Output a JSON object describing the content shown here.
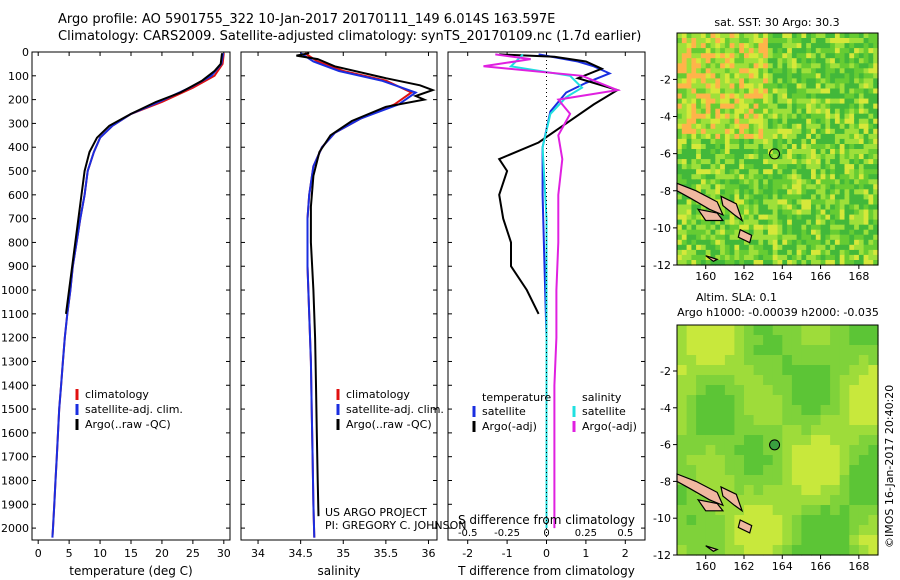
{
  "header": {
    "line1": "Argo profile: AO 5901755_322 10-Jan-2017 20170111_149 6.014S 163.597E",
    "line2": "Climatology: CARS2009. Satellite-adjusted climatology: synTS_20170109.nc (1.7d earlier)"
  },
  "credit": "©IMOS 16-Jan-2017 20:40:20",
  "colors": {
    "climatology": "#e01010",
    "satellite": "#1a2ee0",
    "argo": "#000000",
    "sal_satellite": "#20e0e0",
    "sal_argo": "#e020e0"
  },
  "chart_data": [
    {
      "type": "line",
      "panel": "temperature",
      "xlabel": "temperature (deg C)",
      "xlim": [
        -1,
        31
      ],
      "xticks": [
        0,
        5,
        10,
        15,
        20,
        25,
        30
      ],
      "ylim": [
        2050,
        0
      ],
      "yticks": [
        0,
        100,
        200,
        300,
        400,
        500,
        600,
        700,
        800,
        900,
        1000,
        1100,
        1200,
        1300,
        1400,
        1500,
        1600,
        1700,
        1800,
        1900,
        2000
      ],
      "legend": [
        "climatology",
        "satellite-adj. clim.",
        "Argo(..raw -QC)"
      ],
      "series": [
        {
          "name": "climatology",
          "color_key": "climatology",
          "points": [
            [
              30.0,
              5
            ],
            [
              29.8,
              50
            ],
            [
              28.5,
              100
            ],
            [
              25,
              150
            ],
            [
              20,
              210
            ],
            [
              15,
              260
            ],
            [
              12,
              310
            ],
            [
              10,
              360
            ],
            [
              9,
              420
            ],
            [
              8,
              500
            ],
            [
              7.5,
              600
            ],
            [
              6.8,
              700
            ],
            [
              6.2,
              800
            ],
            [
              5.6,
              900
            ],
            [
              5.2,
              1000
            ],
            [
              4.7,
              1100
            ],
            [
              4.3,
              1200
            ],
            [
              4.0,
              1300
            ],
            [
              3.7,
              1400
            ],
            [
              3.4,
              1500
            ],
            [
              3.2,
              1600
            ],
            [
              3.0,
              1700
            ],
            [
              2.8,
              1800
            ],
            [
              2.6,
              1900
            ],
            [
              2.4,
              2000
            ],
            [
              2.3,
              2040
            ]
          ]
        },
        {
          "name": "satellite-adj. clim.",
          "color_key": "satellite",
          "points": [
            [
              29.9,
              5
            ],
            [
              29.6,
              50
            ],
            [
              28.0,
              100
            ],
            [
              24.5,
              150
            ],
            [
              19.5,
              210
            ],
            [
              15,
              260
            ],
            [
              12,
              310
            ],
            [
              10,
              360
            ],
            [
              9,
              420
            ],
            [
              8,
              500
            ],
            [
              7.5,
              600
            ],
            [
              6.8,
              700
            ],
            [
              6.2,
              800
            ],
            [
              5.6,
              900
            ],
            [
              5.2,
              1000
            ],
            [
              4.7,
              1100
            ],
            [
              4.3,
              1200
            ],
            [
              4.0,
              1300
            ],
            [
              3.7,
              1400
            ],
            [
              3.4,
              1500
            ],
            [
              3.2,
              1600
            ],
            [
              3.0,
              1700
            ],
            [
              2.8,
              1800
            ],
            [
              2.6,
              1900
            ],
            [
              2.4,
              2000
            ],
            [
              2.3,
              2040
            ]
          ]
        },
        {
          "name": "Argo(..raw -QC)",
          "color_key": "argo",
          "points": [
            [
              29.7,
              5
            ],
            [
              29.6,
              30
            ],
            [
              29.5,
              50
            ],
            [
              28.5,
              80
            ],
            [
              26.5,
              120
            ],
            [
              23,
              170
            ],
            [
              19,
              210
            ],
            [
              15,
              260
            ],
            [
              11.5,
              310
            ],
            [
              9.5,
              360
            ],
            [
              8.3,
              420
            ],
            [
              7.5,
              500
            ],
            [
              7.0,
              600
            ],
            [
              6.5,
              700
            ],
            [
              6.0,
              800
            ],
            [
              5.5,
              900
            ],
            [
              5.0,
              1000
            ],
            [
              4.5,
              1100
            ]
          ]
        }
      ]
    },
    {
      "type": "line",
      "panel": "salinity",
      "xlabel": "salinity",
      "xlim": [
        33.8,
        36.1
      ],
      "xticks": [
        34,
        34.5,
        35,
        35.5,
        36
      ],
      "ylim": [
        2050,
        0
      ],
      "legend": [
        "climatology",
        "satellite-adj. clim.",
        "Argo(..raw -QC)"
      ],
      "annotation": [
        "US ARGO PROJECT",
        "PI: GREGORY C. JOHNSON"
      ],
      "series": [
        {
          "name": "climatology",
          "color_key": "climatology",
          "points": [
            [
              34.55,
              5
            ],
            [
              34.7,
              40
            ],
            [
              35.0,
              80
            ],
            [
              35.5,
              120
            ],
            [
              35.8,
              170
            ],
            [
              35.6,
              220
            ],
            [
              35.2,
              280
            ],
            [
              34.9,
              340
            ],
            [
              34.75,
              400
            ],
            [
              34.65,
              480
            ],
            [
              34.6,
              600
            ],
            [
              34.58,
              700
            ],
            [
              34.58,
              900
            ],
            [
              34.6,
              1100
            ],
            [
              34.62,
              1300
            ],
            [
              34.63,
              1500
            ],
            [
              34.64,
              1700
            ],
            [
              34.65,
              1900
            ],
            [
              34.66,
              2040
            ]
          ]
        },
        {
          "name": "satellite-adj. clim.",
          "color_key": "satellite",
          "points": [
            [
              34.5,
              5
            ],
            [
              34.65,
              40
            ],
            [
              34.95,
              80
            ],
            [
              35.45,
              120
            ],
            [
              35.85,
              170
            ],
            [
              35.65,
              220
            ],
            [
              35.2,
              280
            ],
            [
              34.9,
              340
            ],
            [
              34.75,
              400
            ],
            [
              34.65,
              480
            ],
            [
              34.6,
              600
            ],
            [
              34.58,
              700
            ],
            [
              34.58,
              900
            ],
            [
              34.6,
              1100
            ],
            [
              34.62,
              1300
            ],
            [
              34.63,
              1500
            ],
            [
              34.64,
              1700
            ],
            [
              34.65,
              1900
            ],
            [
              34.66,
              2040
            ]
          ]
        },
        {
          "name": "Argo(..raw -QC)",
          "color_key": "argo",
          "points": [
            [
              34.6,
              5
            ],
            [
              34.45,
              15
            ],
            [
              34.7,
              30
            ],
            [
              34.9,
              60
            ],
            [
              35.5,
              110
            ],
            [
              35.9,
              140
            ],
            [
              36.05,
              160
            ],
            [
              35.85,
              185
            ],
            [
              35.95,
              200
            ],
            [
              35.5,
              230
            ],
            [
              35.1,
              290
            ],
            [
              34.85,
              350
            ],
            [
              34.72,
              420
            ],
            [
              34.65,
              520
            ],
            [
              34.62,
              650
            ],
            [
              34.62,
              800
            ],
            [
              34.65,
              1000
            ],
            [
              34.67,
              1200
            ],
            [
              34.68,
              1400
            ],
            [
              34.69,
              1600
            ],
            [
              34.7,
              1800
            ],
            [
              34.71,
              1950
            ]
          ]
        }
      ]
    },
    {
      "type": "line",
      "panel": "difference",
      "xlabel": "T difference from climatology",
      "xlabel_top": "S difference from climatology",
      "xlim": [
        -2.5,
        2.5
      ],
      "xticks": [
        -2,
        -1,
        0,
        1,
        2
      ],
      "xticks_S": [
        "-0.5",
        "-0.25",
        "0",
        "0.25",
        "0.5"
      ],
      "ylim": [
        2050,
        0
      ],
      "legend_titles": [
        "temperature",
        "salinity"
      ],
      "legend": [
        "satellite",
        "Argo(-adj)",
        "satellite",
        "Argo(-adj)"
      ],
      "series": [
        {
          "name": "satellite",
          "color_key": "satellite",
          "points": [
            [
              -0.2,
              10
            ],
            [
              0.8,
              40
            ],
            [
              1.2,
              60
            ],
            [
              1.6,
              90
            ],
            [
              1.0,
              130
            ],
            [
              0.5,
              170
            ],
            [
              0.1,
              250
            ],
            [
              -0.1,
              400
            ],
            [
              -0.1,
              600
            ],
            [
              -0.05,
              900
            ],
            [
              0,
              1200
            ],
            [
              0,
              1500
            ],
            [
              0,
              1800
            ],
            [
              0,
              2000
            ]
          ]
        },
        {
          "name": "Argo(-adj)",
          "color_key": "argo",
          "points": [
            [
              -1.2,
              10
            ],
            [
              0.2,
              20
            ],
            [
              1.0,
              40
            ],
            [
              1.4,
              70
            ],
            [
              0.8,
              110
            ],
            [
              1.8,
              160
            ],
            [
              1.2,
              220
            ],
            [
              0.5,
              300
            ],
            [
              -0.2,
              380
            ],
            [
              -1.2,
              450
            ],
            [
              -1.0,
              500
            ],
            [
              -1.2,
              600
            ],
            [
              -1.1,
              700
            ],
            [
              -0.9,
              800
            ],
            [
              -0.9,
              900
            ],
            [
              -0.5,
              1000
            ],
            [
              -0.2,
              1100
            ]
          ]
        },
        {
          "name": "satellite (S)",
          "color_key": "sal_satellite",
          "points": [
            [
              -0.6,
              10
            ],
            [
              -0.9,
              60
            ],
            [
              0.6,
              100
            ],
            [
              0.9,
              150
            ],
            [
              0.5,
              190
            ],
            [
              0.1,
              260
            ],
            [
              -0.1,
              400
            ],
            [
              0,
              700
            ],
            [
              0,
              1000
            ],
            [
              0,
              1300
            ],
            [
              0,
              1600
            ],
            [
              0,
              1900
            ],
            [
              0,
              2000
            ]
          ]
        },
        {
          "name": "Argo(-adj) (S)",
          "color_key": "sal_argo",
          "points": [
            [
              -1.3,
              10
            ],
            [
              -0.4,
              30
            ],
            [
              -1.6,
              60
            ],
            [
              0.9,
              100
            ],
            [
              1.8,
              160
            ],
            [
              0.3,
              200
            ],
            [
              0.6,
              260
            ],
            [
              0.3,
              350
            ],
            [
              0.4,
              450
            ],
            [
              0.3,
              600
            ],
            [
              0.3,
              800
            ],
            [
              0.25,
              1000
            ],
            [
              0.25,
              1200
            ],
            [
              0.2,
              1400
            ],
            [
              0.2,
              1600
            ],
            [
              0.2,
              1800
            ],
            [
              0.2,
              2000
            ]
          ]
        }
      ]
    },
    {
      "type": "heatmap",
      "panel": "sst_map",
      "title": "sat. SST: 30 Argo: 30.3",
      "xlim": [
        158.5,
        169
      ],
      "ylim": [
        -12,
        0.5
      ],
      "xticks": [
        160,
        162,
        164,
        166,
        168
      ],
      "yticks": [
        -2,
        -4,
        -6,
        -8,
        -10,
        -12
      ],
      "marker": {
        "lon": 163.597,
        "lat": -6.014
      }
    },
    {
      "type": "heatmap",
      "panel": "sla_map",
      "title_lines": [
        "Altim. SLA: 0.1",
        "Argo h1000: -0.00039 h2000: -0.035"
      ],
      "xlim": [
        158.5,
        169
      ],
      "ylim": [
        -12,
        0.5
      ],
      "xticks": [
        160,
        162,
        164,
        166,
        168
      ],
      "yticks": [
        -2,
        -4,
        -6,
        -8,
        -10,
        -12
      ],
      "marker": {
        "lon": 163.597,
        "lat": -6.014
      }
    }
  ]
}
